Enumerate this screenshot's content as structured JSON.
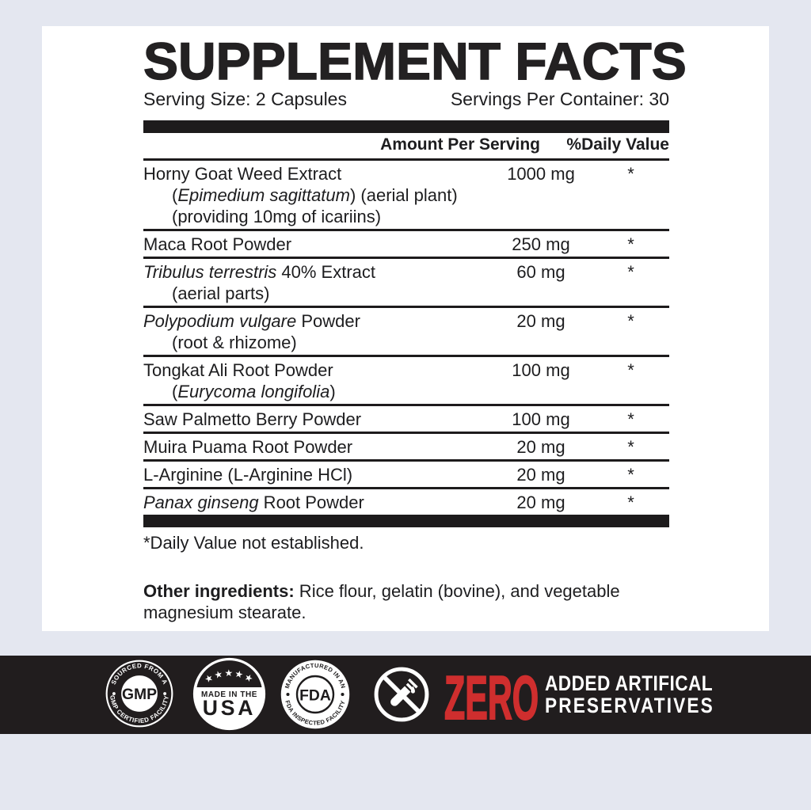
{
  "colors": {
    "page_bg": "#e4e7f0",
    "card_bg": "#ffffff",
    "band_bg": "#211d1e",
    "ink": "#1d1b1c",
    "accent_red": "#cf2e2e"
  },
  "panel": {
    "title": "SUPPLEMENT FACTS",
    "serving_size": "Serving Size: 2 Capsules",
    "servings_per_container": "Servings Per Container: 30",
    "col_amount_header": "Amount Per Serving",
    "col_dv_header": "%Daily Value",
    "rows": [
      {
        "name": [
          {
            "t": "Horny Goat Weed Extract",
            "i": false
          }
        ],
        "sublines": [
          [
            {
              "t": "(",
              "i": false
            },
            {
              "t": "Epimedium sagittatum",
              "i": true
            },
            {
              "t": ") (aerial plant)",
              "i": false
            }
          ],
          [
            {
              "t": "(providing 10mg of icariins)",
              "i": false
            }
          ]
        ],
        "amount": "1000 mg",
        "dv": "*"
      },
      {
        "name": [
          {
            "t": "Maca Root Powder",
            "i": false
          }
        ],
        "sublines": [],
        "amount": "250 mg",
        "dv": "*"
      },
      {
        "name": [
          {
            "t": "Tribulus terrestris",
            "i": true
          },
          {
            "t": " 40% Extract",
            "i": false
          }
        ],
        "sublines": [
          [
            {
              "t": "(aerial parts)",
              "i": false
            }
          ]
        ],
        "amount": "60 mg",
        "dv": "*"
      },
      {
        "name": [
          {
            "t": "Polypodium vulgare",
            "i": true
          },
          {
            "t": " Powder",
            "i": false
          }
        ],
        "sublines": [
          [
            {
              "t": "(root & rhizome)",
              "i": false
            }
          ]
        ],
        "amount": "20 mg",
        "dv": "*"
      },
      {
        "name": [
          {
            "t": "Tongkat Ali Root Powder",
            "i": false
          }
        ],
        "sublines": [
          [
            {
              "t": "(",
              "i": false
            },
            {
              "t": "Eurycoma longifolia",
              "i": true
            },
            {
              "t": ")",
              "i": false
            }
          ]
        ],
        "amount": "100 mg",
        "dv": "*"
      },
      {
        "name": [
          {
            "t": "Saw Palmetto Berry Powder",
            "i": false
          }
        ],
        "sublines": [],
        "amount": "100 mg",
        "dv": "*"
      },
      {
        "name": [
          {
            "t": "Muira Puama Root Powder",
            "i": false
          }
        ],
        "sublines": [],
        "amount": "20 mg",
        "dv": "*"
      },
      {
        "name": [
          {
            "t": "L-Arginine (L-Arginine HCl)",
            "i": false
          }
        ],
        "sublines": [],
        "amount": "20 mg",
        "dv": "*"
      },
      {
        "name": [
          {
            "t": "Panax ginseng",
            "i": true
          },
          {
            "t": " Root Powder",
            "i": false
          }
        ],
        "sublines": [],
        "amount": "20 mg",
        "dv": "*"
      }
    ],
    "footnote": "*Daily Value not established.",
    "other_ingredients_label": "Other ingredients:",
    "other_ingredients_text": " Rice flour, gelatin (bovine), and vegetable magnesium stearate."
  },
  "band": {
    "gmp_seal": {
      "top_text": "SOURCED FROM A",
      "center_text": "GMP",
      "bottom_text": "GMP CERTIFIED FACILITY"
    },
    "usa_seal": {
      "stars": "★★★★★",
      "line1": "MADE IN THE",
      "line2": "USA"
    },
    "fda_seal": {
      "top_text": "MANUFACTURED IN AN",
      "center_text": "FDA",
      "bottom_text": "FDA INSPECTED FACILITY"
    },
    "zero_text": "ZERO",
    "claim_line1": "ADDED ARTIFICAL",
    "claim_line2": "PRESERVATIVES"
  }
}
